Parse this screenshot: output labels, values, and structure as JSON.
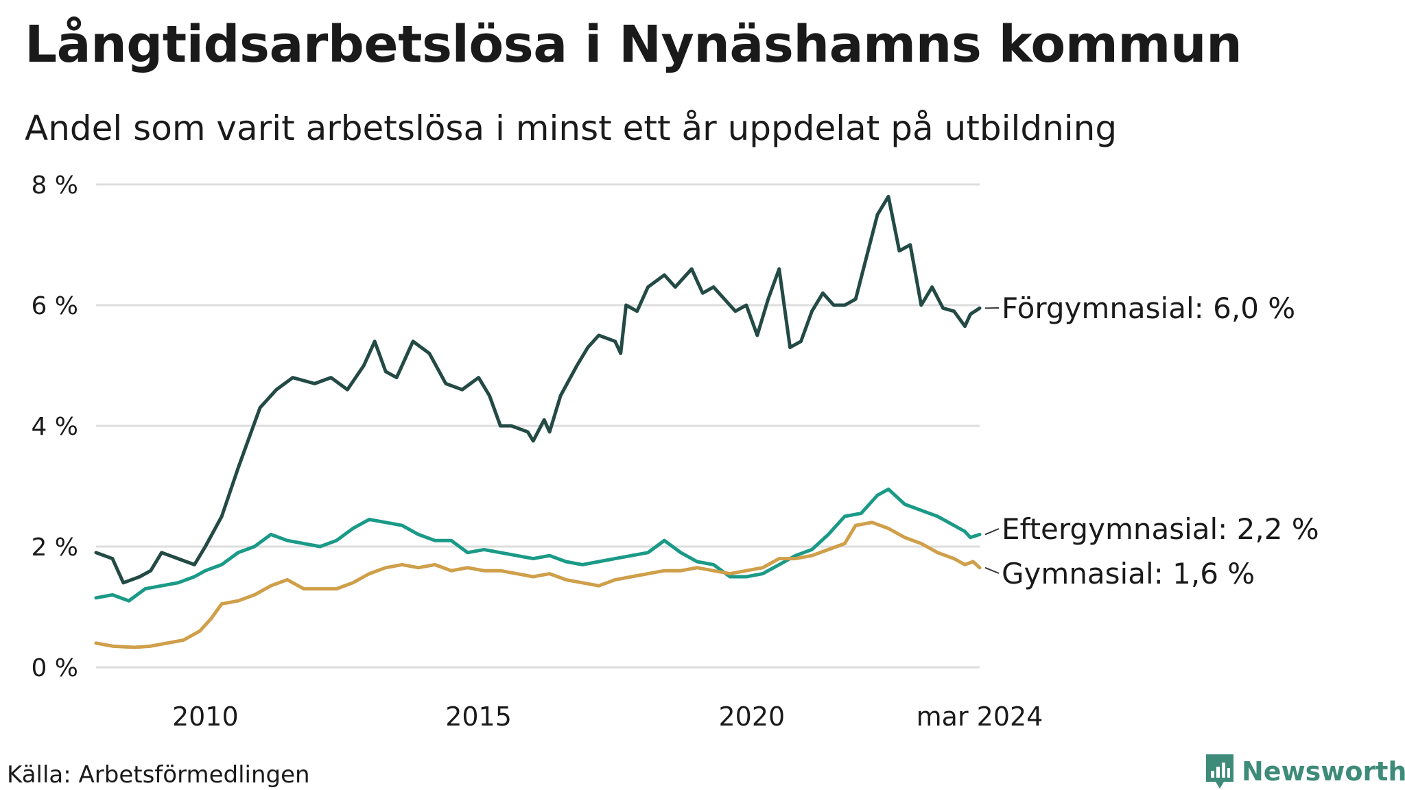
{
  "title": "Långtidsarbetslösa i Nynäshamns kommun",
  "subtitle": "Andel som varit arbetslösa i minst ett år uppdelat på utbildning",
  "source": "Källa: Arbetsförmedlingen",
  "brand": "Newsworthy",
  "colors": {
    "forgymnasial": "#234a45",
    "eftergymnasial": "#1a9a87",
    "gymnasial": "#cf9f4a",
    "grid": "#dddddd",
    "brand": "#3d8b78"
  },
  "chart_data": {
    "type": "line",
    "title": "Långtidsarbetslösa i Nynäshamns kommun",
    "ylabel": "",
    "xlabel": "",
    "ylim": [
      0,
      8
    ],
    "xlim": [
      2008.0,
      2024.17
    ],
    "y_ticks": [
      0,
      2,
      4,
      6,
      8
    ],
    "y_tick_labels": [
      "0 %",
      "2 %",
      "4 %",
      "6 %",
      "8 %"
    ],
    "x_ticks": [
      2010,
      2015,
      2020,
      2024.17
    ],
    "x_tick_labels": [
      "2010",
      "2015",
      "2020",
      "mar 2024"
    ],
    "grid": true,
    "series": [
      {
        "name": "Förgymnasial",
        "label": "Förgymnasial: 6,0 %",
        "color": "#234a45",
        "points": [
          [
            2008.0,
            1.9
          ],
          [
            2008.3,
            1.8
          ],
          [
            2008.5,
            1.4
          ],
          [
            2008.8,
            1.5
          ],
          [
            2009.0,
            1.6
          ],
          [
            2009.2,
            1.9
          ],
          [
            2009.5,
            1.8
          ],
          [
            2009.8,
            1.7
          ],
          [
            2010.0,
            2.0
          ],
          [
            2010.3,
            2.5
          ],
          [
            2010.6,
            3.3
          ],
          [
            2010.8,
            3.8
          ],
          [
            2011.0,
            4.3
          ],
          [
            2011.3,
            4.6
          ],
          [
            2011.6,
            4.8
          ],
          [
            2012.0,
            4.7
          ],
          [
            2012.3,
            4.8
          ],
          [
            2012.6,
            4.6
          ],
          [
            2012.9,
            5.0
          ],
          [
            2013.1,
            5.4
          ],
          [
            2013.3,
            4.9
          ],
          [
            2013.5,
            4.8
          ],
          [
            2013.8,
            5.4
          ],
          [
            2014.1,
            5.2
          ],
          [
            2014.4,
            4.7
          ],
          [
            2014.7,
            4.6
          ],
          [
            2015.0,
            4.8
          ],
          [
            2015.2,
            4.5
          ],
          [
            2015.4,
            4.0
          ],
          [
            2015.6,
            4.0
          ],
          [
            2015.9,
            3.9
          ],
          [
            2016.0,
            3.75
          ],
          [
            2016.2,
            4.1
          ],
          [
            2016.3,
            3.9
          ],
          [
            2016.5,
            4.5
          ],
          [
            2016.8,
            5.0
          ],
          [
            2017.0,
            5.3
          ],
          [
            2017.2,
            5.5
          ],
          [
            2017.5,
            5.4
          ],
          [
            2017.6,
            5.2
          ],
          [
            2017.7,
            6.0
          ],
          [
            2017.9,
            5.9
          ],
          [
            2018.1,
            6.3
          ],
          [
            2018.4,
            6.5
          ],
          [
            2018.6,
            6.3
          ],
          [
            2018.9,
            6.6
          ],
          [
            2019.1,
            6.2
          ],
          [
            2019.3,
            6.3
          ],
          [
            2019.5,
            6.1
          ],
          [
            2019.7,
            5.9
          ],
          [
            2019.9,
            6.0
          ],
          [
            2020.1,
            5.5
          ],
          [
            2020.3,
            6.1
          ],
          [
            2020.5,
            6.6
          ],
          [
            2020.7,
            5.3
          ],
          [
            2020.9,
            5.4
          ],
          [
            2021.1,
            5.9
          ],
          [
            2021.3,
            6.2
          ],
          [
            2021.5,
            6.0
          ],
          [
            2021.7,
            6.0
          ],
          [
            2021.9,
            6.1
          ],
          [
            2022.1,
            6.8
          ],
          [
            2022.3,
            7.5
          ],
          [
            2022.5,
            7.8
          ],
          [
            2022.7,
            6.9
          ],
          [
            2022.9,
            7.0
          ],
          [
            2023.1,
            6.0
          ],
          [
            2023.3,
            6.3
          ],
          [
            2023.5,
            5.95
          ],
          [
            2023.7,
            5.9
          ],
          [
            2023.9,
            5.65
          ],
          [
            2024.0,
            5.85
          ],
          [
            2024.17,
            5.95
          ]
        ]
      },
      {
        "name": "Eftergymnasial",
        "label": "Eftergymnasial: 2,2 %",
        "color": "#1a9a87",
        "points": [
          [
            2008.0,
            1.15
          ],
          [
            2008.3,
            1.2
          ],
          [
            2008.6,
            1.1
          ],
          [
            2008.9,
            1.3
          ],
          [
            2009.2,
            1.35
          ],
          [
            2009.5,
            1.4
          ],
          [
            2009.8,
            1.5
          ],
          [
            2010.0,
            1.6
          ],
          [
            2010.3,
            1.7
          ],
          [
            2010.6,
            1.9
          ],
          [
            2010.9,
            2.0
          ],
          [
            2011.2,
            2.2
          ],
          [
            2011.5,
            2.1
          ],
          [
            2011.8,
            2.05
          ],
          [
            2012.1,
            2.0
          ],
          [
            2012.4,
            2.1
          ],
          [
            2012.7,
            2.3
          ],
          [
            2013.0,
            2.45
          ],
          [
            2013.3,
            2.4
          ],
          [
            2013.6,
            2.35
          ],
          [
            2013.9,
            2.2
          ],
          [
            2014.2,
            2.1
          ],
          [
            2014.5,
            2.1
          ],
          [
            2014.8,
            1.9
          ],
          [
            2015.1,
            1.95
          ],
          [
            2015.4,
            1.9
          ],
          [
            2015.7,
            1.85
          ],
          [
            2016.0,
            1.8
          ],
          [
            2016.3,
            1.85
          ],
          [
            2016.6,
            1.75
          ],
          [
            2016.9,
            1.7
          ],
          [
            2017.2,
            1.75
          ],
          [
            2017.5,
            1.8
          ],
          [
            2017.8,
            1.85
          ],
          [
            2018.1,
            1.9
          ],
          [
            2018.4,
            2.1
          ],
          [
            2018.7,
            1.9
          ],
          [
            2019.0,
            1.75
          ],
          [
            2019.3,
            1.7
          ],
          [
            2019.6,
            1.5
          ],
          [
            2019.9,
            1.5
          ],
          [
            2020.2,
            1.55
          ],
          [
            2020.5,
            1.7
          ],
          [
            2020.8,
            1.85
          ],
          [
            2021.1,
            1.95
          ],
          [
            2021.4,
            2.2
          ],
          [
            2021.7,
            2.5
          ],
          [
            2022.0,
            2.55
          ],
          [
            2022.3,
            2.85
          ],
          [
            2022.5,
            2.95
          ],
          [
            2022.8,
            2.7
          ],
          [
            2023.1,
            2.6
          ],
          [
            2023.4,
            2.5
          ],
          [
            2023.7,
            2.35
          ],
          [
            2023.9,
            2.25
          ],
          [
            2024.0,
            2.15
          ],
          [
            2024.17,
            2.2
          ]
        ]
      },
      {
        "name": "Gymnasial",
        "label": "Gymnasial: 1,6 %",
        "color": "#cf9f4a",
        "points": [
          [
            2008.0,
            0.4
          ],
          [
            2008.3,
            0.35
          ],
          [
            2008.7,
            0.33
          ],
          [
            2009.0,
            0.35
          ],
          [
            2009.3,
            0.4
          ],
          [
            2009.6,
            0.45
          ],
          [
            2009.9,
            0.6
          ],
          [
            2010.1,
            0.8
          ],
          [
            2010.3,
            1.05
          ],
          [
            2010.6,
            1.1
          ],
          [
            2010.9,
            1.2
          ],
          [
            2011.2,
            1.35
          ],
          [
            2011.5,
            1.45
          ],
          [
            2011.8,
            1.3
          ],
          [
            2012.1,
            1.3
          ],
          [
            2012.4,
            1.3
          ],
          [
            2012.7,
            1.4
          ],
          [
            2013.0,
            1.55
          ],
          [
            2013.3,
            1.65
          ],
          [
            2013.6,
            1.7
          ],
          [
            2013.9,
            1.65
          ],
          [
            2014.2,
            1.7
          ],
          [
            2014.5,
            1.6
          ],
          [
            2014.8,
            1.65
          ],
          [
            2015.1,
            1.6
          ],
          [
            2015.4,
            1.6
          ],
          [
            2015.7,
            1.55
          ],
          [
            2016.0,
            1.5
          ],
          [
            2016.3,
            1.55
          ],
          [
            2016.6,
            1.45
          ],
          [
            2016.9,
            1.4
          ],
          [
            2017.2,
            1.35
          ],
          [
            2017.5,
            1.45
          ],
          [
            2017.8,
            1.5
          ],
          [
            2018.1,
            1.55
          ],
          [
            2018.4,
            1.6
          ],
          [
            2018.7,
            1.6
          ],
          [
            2019.0,
            1.65
          ],
          [
            2019.3,
            1.6
          ],
          [
            2019.6,
            1.55
          ],
          [
            2019.9,
            1.6
          ],
          [
            2020.2,
            1.65
          ],
          [
            2020.5,
            1.8
          ],
          [
            2020.8,
            1.8
          ],
          [
            2021.1,
            1.85
          ],
          [
            2021.4,
            1.95
          ],
          [
            2021.7,
            2.05
          ],
          [
            2021.9,
            2.35
          ],
          [
            2022.2,
            2.4
          ],
          [
            2022.5,
            2.3
          ],
          [
            2022.8,
            2.15
          ],
          [
            2023.1,
            2.05
          ],
          [
            2023.4,
            1.9
          ],
          [
            2023.7,
            1.8
          ],
          [
            2023.9,
            1.7
          ],
          [
            2024.05,
            1.75
          ],
          [
            2024.17,
            1.65
          ]
        ]
      }
    ]
  }
}
